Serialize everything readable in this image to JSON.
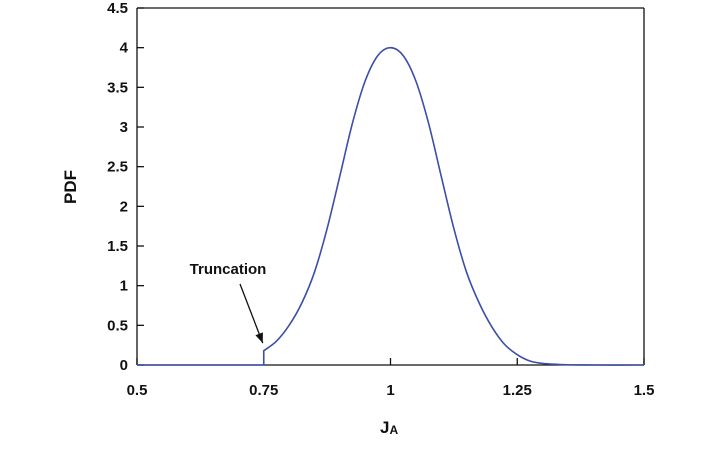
{
  "chart_data": {
    "type": "line",
    "xlabel": "J",
    "xlabel_sub": "A",
    "ylabel": "PDF",
    "xlim": [
      0.5,
      1.5
    ],
    "ylim": [
      0,
      4.5
    ],
    "xticks": [
      "0.5",
      "0.75",
      "1",
      "1.25",
      "1.5"
    ],
    "yticks": [
      "0",
      "0.5",
      "1",
      "1.5",
      "2",
      "2.5",
      "3",
      "3.5",
      "4",
      "4.5"
    ],
    "grid": false,
    "series": [
      {
        "color": "#3b4fa8",
        "x": [
          0.5,
          0.6,
          0.7,
          0.75,
          0.75,
          0.775,
          0.8,
          0.825,
          0.85,
          0.875,
          0.9,
          0.925,
          0.95,
          0.975,
          1.0,
          1.025,
          1.05,
          1.075,
          1.1,
          1.125,
          1.15,
          1.175,
          1.2,
          1.225,
          1.25,
          1.275,
          1.3,
          1.35,
          1.4,
          1.5
        ],
        "y": [
          0,
          0,
          0,
          0,
          0.18,
          0.3,
          0.5,
          0.78,
          1.17,
          1.72,
          2.38,
          3.05,
          3.58,
          3.9,
          4.0,
          3.9,
          3.58,
          3.05,
          2.38,
          1.72,
          1.17,
          0.78,
          0.48,
          0.26,
          0.13,
          0.05,
          0.02,
          0.003,
          0.0,
          0.0
        ]
      }
    ],
    "annotations": [
      {
        "text": "Truncation",
        "x": 0.75,
        "y": 0.2
      }
    ]
  }
}
